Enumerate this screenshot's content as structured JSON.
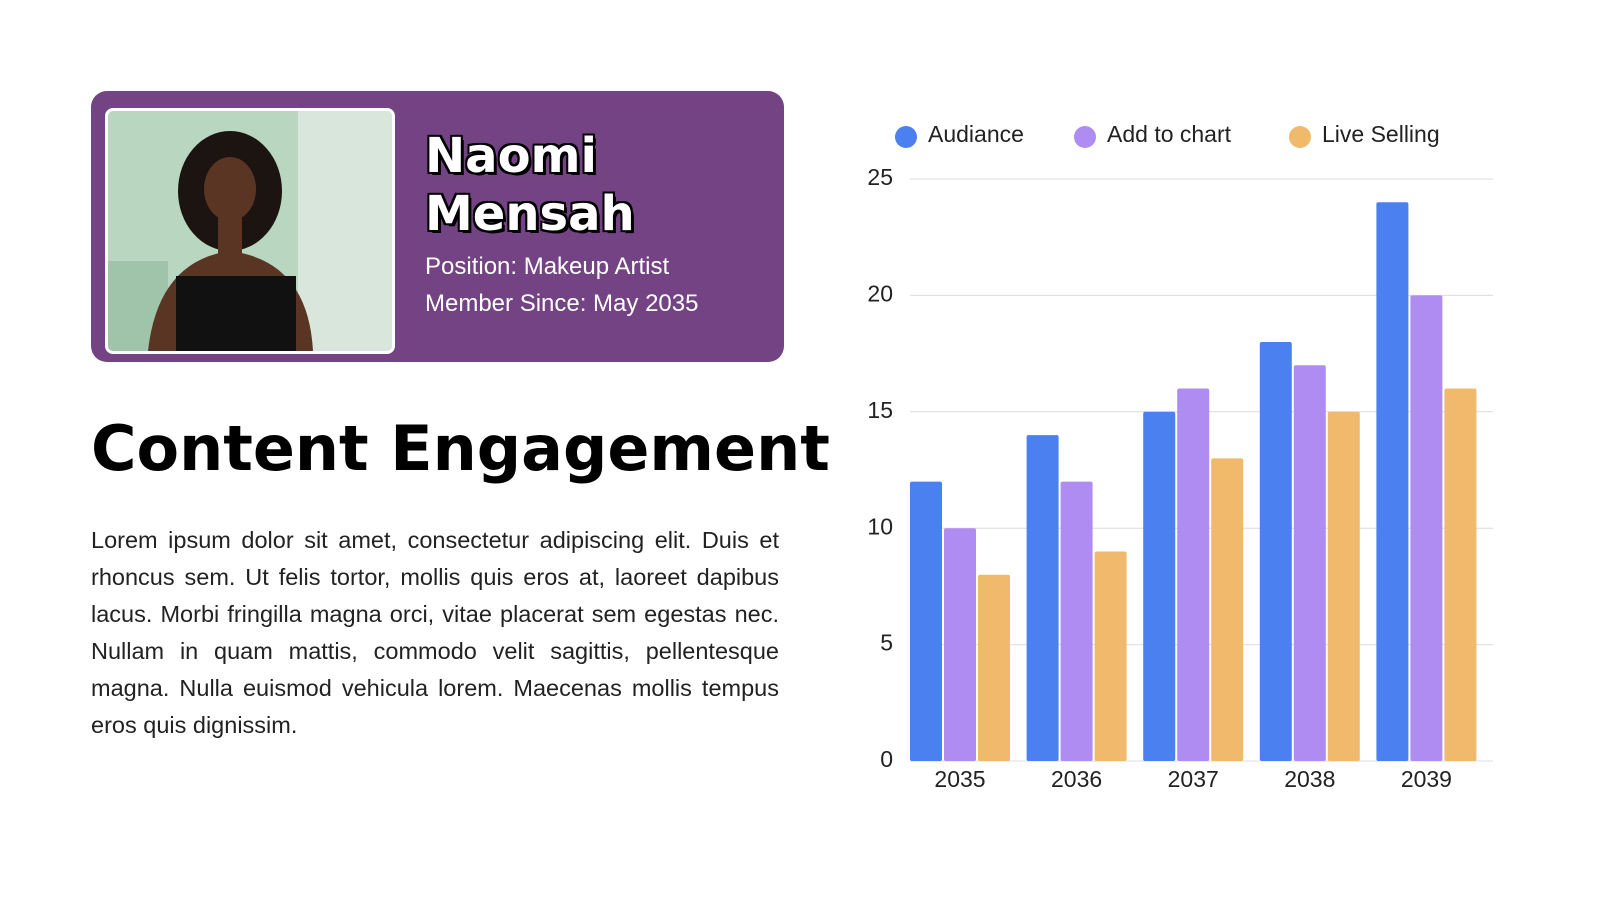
{
  "profile": {
    "first_name": "Naomi",
    "last_name": "Mensah",
    "position": "Position: Makeup Artist",
    "member_since": "Member Since: May 2035"
  },
  "title": "Content Engagement",
  "body": "Lorem ipsum dolor sit amet, consectetur adipiscing elit. Duis et rhoncus sem. Ut felis tortor, mollis quis eros at, laoreet dapibus lacus. Morbi fringilla magna orci, vitae placerat sem egestas nec. Nullam in quam mattis, commodo velit sagittis, pellentesque magna. Nulla euismod vehicula lorem. Maecenas mollis tempus eros quis dignissim.",
  "chart_data": {
    "type": "bar",
    "categories": [
      "2035",
      "2036",
      "2037",
      "2038",
      "2039"
    ],
    "series": [
      {
        "name": "Audiance",
        "color": "#4a80f0",
        "values": [
          12,
          14,
          15,
          18,
          24
        ]
      },
      {
        "name": "Add to chart",
        "color": "#ae8cf2",
        "values": [
          10,
          12,
          16,
          17,
          20
        ]
      },
      {
        "name": "Live Selling",
        "color": "#f0b96c",
        "values": [
          8,
          9,
          13,
          15,
          16
        ]
      }
    ],
    "ylim": [
      0,
      25
    ],
    "yticks": [
      0,
      5,
      10,
      15,
      20,
      25
    ],
    "grid": true,
    "legend": "top"
  }
}
